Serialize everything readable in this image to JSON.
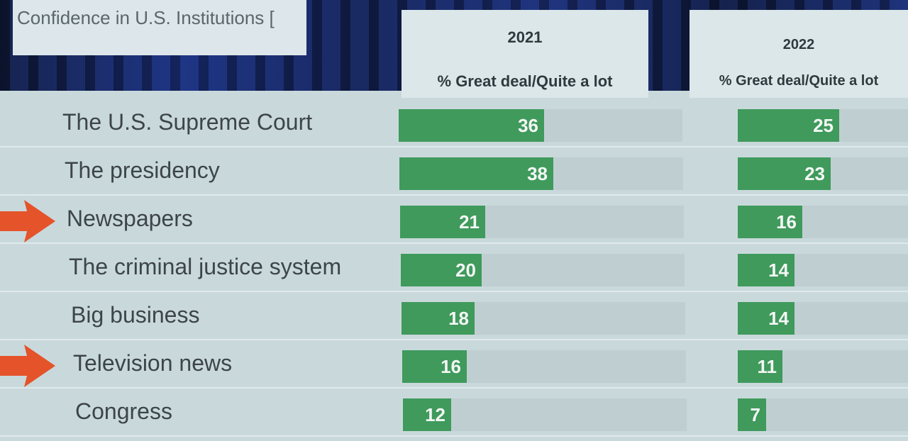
{
  "chart_data": {
    "type": "bar",
    "title": "Confidence in U.S. Institutions [",
    "categories": [
      "The U.S. Supreme Court",
      "The presidency",
      "Newspapers",
      "The criminal justice system",
      "Big business",
      "Television news",
      "Congress"
    ],
    "series": [
      {
        "name": "2021",
        "subtitle": "% Great deal/Quite a lot",
        "values": [
          36,
          38,
          21,
          20,
          18,
          16,
          12
        ]
      },
      {
        "name": "2022",
        "subtitle": "% Great deal/Quite a lot",
        "values": [
          25,
          23,
          16,
          14,
          14,
          11,
          7
        ]
      }
    ],
    "xlim": [
      0,
      70
    ],
    "highlighted_rows": [
      "Newspapers",
      "Television news"
    ],
    "colors": {
      "bar": "#3f9a5c",
      "track": "#bfcfd1",
      "panel": "#c9d9db",
      "arrow": "#e5532a"
    }
  }
}
